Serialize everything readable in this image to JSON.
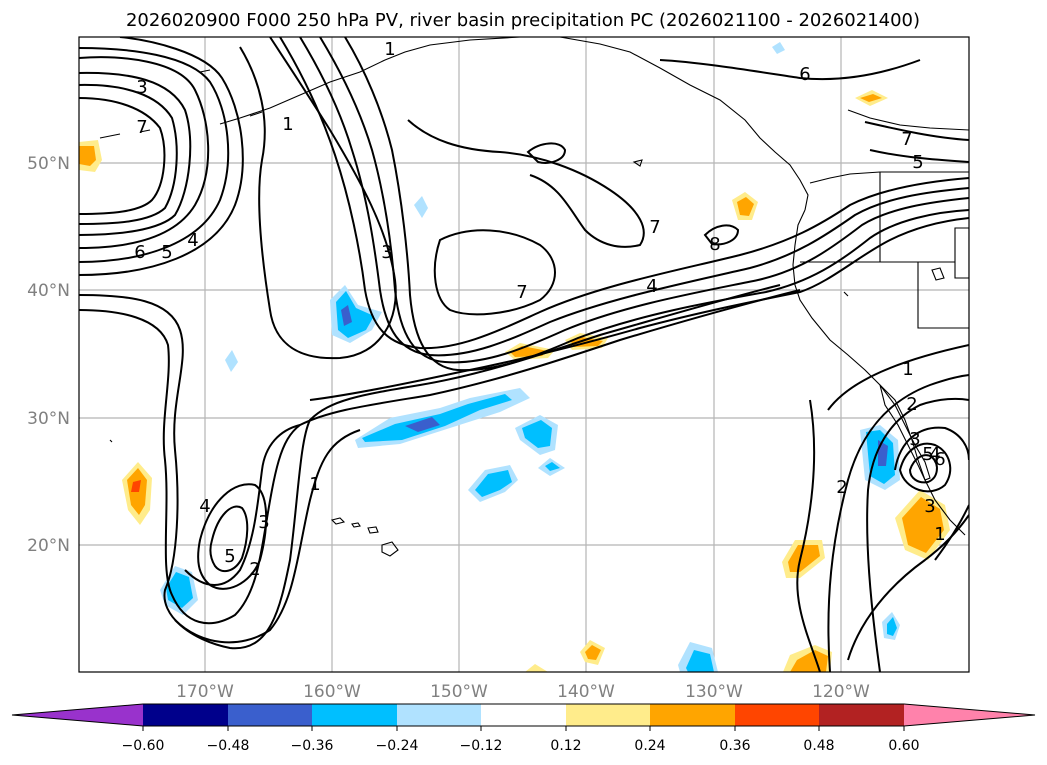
{
  "title": "2026020900 F000 250 hPa PV, river basin precipitation PC (2026021100 - 2026021400)",
  "map": {
    "lat_ticks": [
      "50°N",
      "40°N",
      "30°N",
      "20°N"
    ],
    "lon_ticks": [
      "170°W",
      "160°W",
      "150°W",
      "140°W",
      "130°W",
      "120°W"
    ],
    "lon_range": [
      -180,
      -110
    ],
    "lat_range": [
      10,
      60
    ],
    "gridlines": true,
    "pv_contour_labels": [
      "3",
      "7",
      "6",
      "5",
      "4",
      "1",
      "3",
      "1",
      "7",
      "7",
      "8",
      "4",
      "6",
      "7",
      "5",
      "1",
      "2",
      "3",
      "4",
      "5",
      "1",
      "2",
      "3",
      "4",
      "5",
      "6",
      "2",
      "3",
      "1"
    ]
  },
  "colorbar": {
    "ticks": [
      "−0.60",
      "−0.48",
      "−0.36",
      "−0.24",
      "−0.12",
      "0.12",
      "0.24",
      "0.36",
      "0.48",
      "0.60"
    ],
    "colors": [
      "#9932cc",
      "#00008b",
      "#3a5fcd",
      "#00bfff",
      "#b0e2ff",
      "#ffffff",
      "#ffec8b",
      "#ffa500",
      "#ff4500",
      "#b22222",
      "#ff82ab"
    ],
    "extend": "both"
  }
}
